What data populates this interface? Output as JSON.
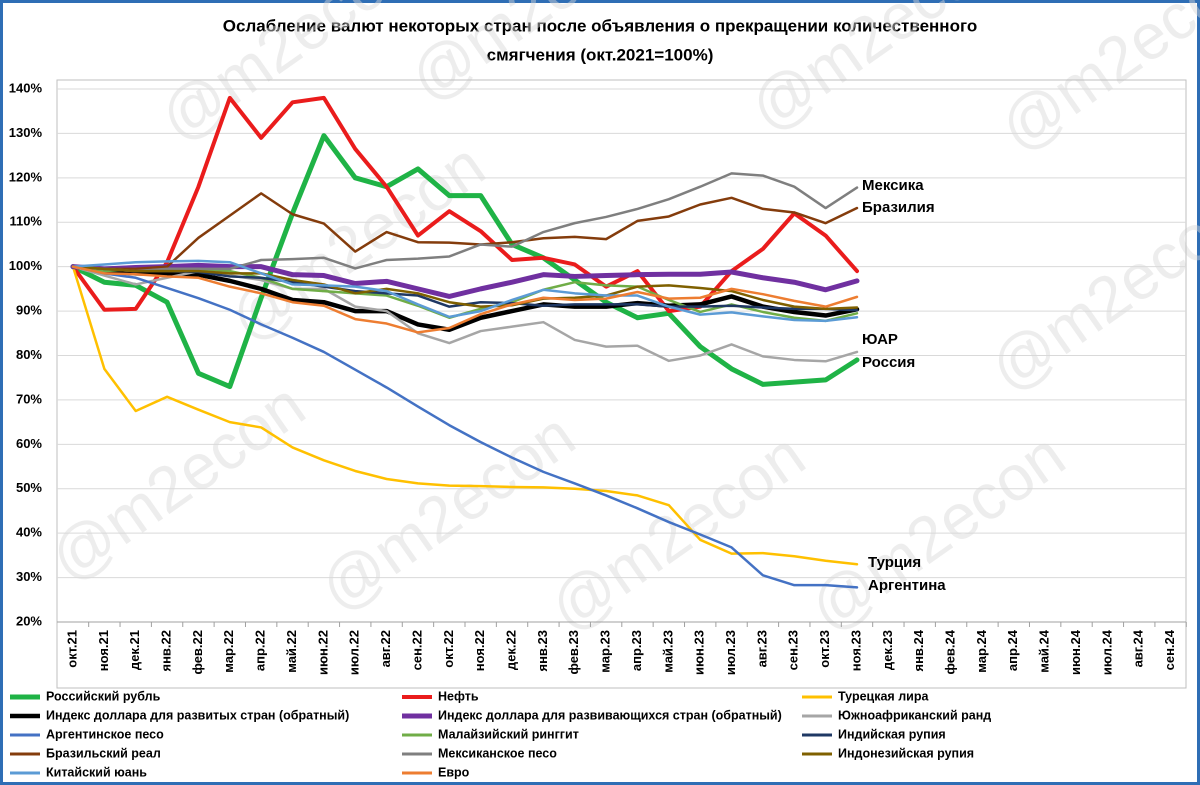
{
  "chart_data": {
    "type": "line",
    "title": [
      "Ослабление валют некоторых стран после объявления о прекращении количественного",
      "смягчения  (окт.2021=100%)"
    ],
    "watermark": "@m2econ",
    "categories": [
      "окт.21",
      "ноя.21",
      "дек.21",
      "янв.22",
      "фев.22",
      "мар.22",
      "апр.22",
      "май.22",
      "июн.22",
      "июл.22",
      "авг.22",
      "сен.22",
      "окт.22",
      "ноя.22",
      "дек.22",
      "янв.23",
      "фев.23",
      "мар.23",
      "апр.23",
      "май.23",
      "июн.23",
      "июл.23",
      "авг.23",
      "сен.23",
      "окт.23",
      "ноя.23",
      "дек.23",
      "янв.24",
      "фев.24",
      "мар.24",
      "апр.24",
      "май.24",
      "июн.24",
      "июл.24",
      "авг.24",
      "сен.24"
    ],
    "ylim": [
      20,
      140
    ],
    "yticks": [
      {
        "value": 20,
        "label": "20%"
      },
      {
        "value": 30,
        "label": "30%"
      },
      {
        "value": 40,
        "label": "40%"
      },
      {
        "value": 50,
        "label": "50%"
      },
      {
        "value": 60,
        "label": "60%"
      },
      {
        "value": 70,
        "label": "70%"
      },
      {
        "value": 80,
        "label": "80%"
      },
      {
        "value": 90,
        "label": "90%"
      },
      {
        "value": 100,
        "label": "100%"
      },
      {
        "value": 110,
        "label": "110%"
      },
      {
        "value": 120,
        "label": "120%"
      },
      {
        "value": 130,
        "label": "130%"
      },
      {
        "value": 140,
        "label": "140%"
      }
    ],
    "grid": true,
    "series": [
      {
        "name": "Российский рубль",
        "color": "#1fb346",
        "line_width": 5,
        "values": [
          100,
          96.5,
          95.8,
          92,
          76,
          73,
          93,
          112,
          129.5,
          120,
          118,
          122,
          116,
          116,
          105,
          102,
          97,
          92,
          88.5,
          89.5,
          82,
          77,
          73.5,
          74,
          74.5,
          79,
          null,
          null,
          null,
          null,
          null,
          null,
          null,
          null,
          null,
          null
        ]
      },
      {
        "name": "Нефть",
        "color": "#ea1c1c",
        "line_width": 4,
        "values": [
          100,
          90.3,
          90.5,
          101,
          118,
          138,
          129,
          137,
          138,
          126.5,
          118,
          107,
          112.5,
          108,
          101.5,
          102,
          100.5,
          95.5,
          99,
          90,
          91,
          99,
          104,
          112,
          107,
          99,
          null,
          null,
          null,
          null,
          null,
          null,
          null,
          null,
          null,
          null
        ]
      },
      {
        "name": "Турецкая лира",
        "color": "#ffc000",
        "line_width": 2.5,
        "values": [
          100,
          77,
          67.5,
          70.7,
          67.8,
          65,
          63.8,
          59.3,
          56.4,
          54,
          52.2,
          51.2,
          50.7,
          50.6,
          50.4,
          50.3,
          50,
          49.5,
          48.5,
          46.3,
          38.5,
          35.4,
          35.5,
          34.8,
          33.8,
          33,
          null,
          null,
          null,
          null,
          null,
          null,
          null,
          null,
          null,
          null
        ]
      },
      {
        "name": "Индекс доллара для развитых стран (обратный)",
        "color": "#000000",
        "line_width": 4.5,
        "values": [
          100,
          99,
          98.5,
          98.4,
          98.2,
          96.8,
          95,
          92.5,
          92,
          90,
          90,
          87,
          85.8,
          88.5,
          90,
          91.5,
          91,
          91,
          91.8,
          91.2,
          91.5,
          93.3,
          91,
          89.8,
          89,
          90.4,
          null,
          null,
          null,
          null,
          null,
          null,
          null,
          null,
          null,
          null
        ]
      },
      {
        "name": "Индекс доллара для развивающихся стран (обратный)",
        "color": "#7030a0",
        "line_width": 5,
        "values": [
          100,
          99.5,
          99.8,
          100,
          100.3,
          100,
          100,
          98.2,
          98,
          96.2,
          96.7,
          95,
          93.3,
          95,
          96.5,
          98.2,
          97.8,
          98,
          98.2,
          98.3,
          98.3,
          98.8,
          97.5,
          96.5,
          94.8,
          96.8,
          null,
          null,
          null,
          null,
          null,
          null,
          null,
          null,
          null,
          null
        ]
      },
      {
        "name": "Южноафриканский ранд",
        "color": "#a6a6a6",
        "line_width": 2.5,
        "values": [
          100,
          98,
          96,
          97.5,
          99,
          98,
          97,
          95,
          95,
          91,
          90,
          85,
          82.8,
          85.5,
          86.5,
          87.5,
          83.5,
          82,
          82.2,
          78.8,
          80,
          82.5,
          79.8,
          79,
          78.7,
          80.8,
          null,
          null,
          null,
          null,
          null,
          null,
          null,
          null,
          null,
          null
        ]
      },
      {
        "name": "Аргентинское песо",
        "color": "#4472c4",
        "line_width": 2.5,
        "values": [
          100,
          98.5,
          97.5,
          95.2,
          92.9,
          90.3,
          87,
          84,
          80.8,
          76.8,
          72.8,
          68.5,
          64.3,
          60.5,
          57,
          53.8,
          51.2,
          48.5,
          45.6,
          42.5,
          39.7,
          36.8,
          30.5,
          28.3,
          28.3,
          27.8,
          null,
          null,
          null,
          null,
          null,
          null,
          null,
          null,
          null,
          null
        ]
      },
      {
        "name": "Малайзийский ринггит",
        "color": "#70ad47",
        "line_width": 2.5,
        "values": [
          100,
          99,
          99.5,
          99.5,
          99.5,
          99,
          97.5,
          95,
          94.5,
          94,
          93.5,
          91.2,
          88.5,
          90.5,
          92,
          94.8,
          96.5,
          95.8,
          95.5,
          92.5,
          89.8,
          91.5,
          89.8,
          88.5,
          87.8,
          89.5,
          null,
          null,
          null,
          null,
          null,
          null,
          null,
          null,
          null,
          null
        ]
      },
      {
        "name": "Индийская рупия",
        "color": "#1f3864",
        "line_width": 2.5,
        "values": [
          100,
          99.5,
          99,
          99,
          98.8,
          97.8,
          97.5,
          96.5,
          95.5,
          94.5,
          94,
          93.5,
          91,
          92,
          91.8,
          91.2,
          91.5,
          91.5,
          91.5,
          91,
          91,
          91.2,
          90.8,
          90.5,
          90.5,
          90.2,
          null,
          null,
          null,
          null,
          null,
          null,
          null,
          null,
          null,
          null
        ]
      },
      {
        "name": "Бразильский реал",
        "color": "#843c0c",
        "line_width": 2.5,
        "values": [
          100,
          99.5,
          99.5,
          100,
          106.5,
          111.5,
          116.5,
          111.8,
          109.7,
          103.4,
          107.8,
          105.5,
          105.4,
          105,
          105.5,
          106.4,
          106.7,
          106.2,
          110.3,
          111.3,
          114,
          115.5,
          113,
          112.2,
          109.8,
          113.2,
          null,
          null,
          null,
          null,
          null,
          null,
          null,
          null,
          null,
          null
        ]
      },
      {
        "name": "Мексиканское песо",
        "color": "#7f7f7f",
        "line_width": 2.5,
        "values": [
          100,
          99.5,
          99,
          99.5,
          99.5,
          99.5,
          101.5,
          101.7,
          102,
          99.6,
          101.5,
          101.8,
          102.3,
          105,
          104.5,
          107.8,
          109.8,
          111.2,
          113,
          115.2,
          118,
          121,
          120.5,
          118,
          113.2,
          117.8,
          null,
          null,
          null,
          null,
          null,
          null,
          null,
          null,
          null,
          null
        ]
      },
      {
        "name": "Индонезийская рупия",
        "color": "#7f6000",
        "line_width": 2.5,
        "values": [
          100,
          99.5,
          99,
          99,
          99,
          98.5,
          98.5,
          97,
          96,
          94,
          95,
          94,
          92,
          91,
          91.3,
          92.8,
          93,
          93.5,
          95.5,
          95.8,
          95.2,
          94.5,
          92.5,
          91,
          90.5,
          90.8,
          null,
          null,
          null,
          null,
          null,
          null,
          null,
          null,
          null,
          null
        ]
      },
      {
        "name": "Китайский юань",
        "color": "#5b9bd5",
        "line_width": 2.5,
        "values": [
          100,
          100.5,
          101,
          101.2,
          101.3,
          101,
          98.5,
          96,
          95.8,
          95.5,
          94.5,
          91.5,
          88.7,
          90,
          92.5,
          94.8,
          94,
          93.5,
          93.5,
          91,
          89.2,
          89.7,
          88.8,
          88,
          87.8,
          88.6,
          null,
          null,
          null,
          null,
          null,
          null,
          null,
          null,
          null,
          null
        ]
      },
      {
        "name": "Евро",
        "color": "#ed7d31",
        "line_width": 2.5,
        "values": [
          100,
          98.5,
          98.3,
          97.8,
          97.5,
          95.5,
          94,
          92,
          91.2,
          88.2,
          87.2,
          85.2,
          86.2,
          89.3,
          91.5,
          93,
          92.5,
          92.8,
          94.3,
          92.8,
          93,
          95,
          93.8,
          92.3,
          91,
          93.2,
          null,
          null,
          null,
          null,
          null,
          null,
          null,
          null,
          null,
          null
        ]
      }
    ],
    "annotations": [
      "Мексика",
      "Бразилия",
      "ЮАР",
      "Россия",
      "Турция",
      "Аргентина"
    ]
  }
}
